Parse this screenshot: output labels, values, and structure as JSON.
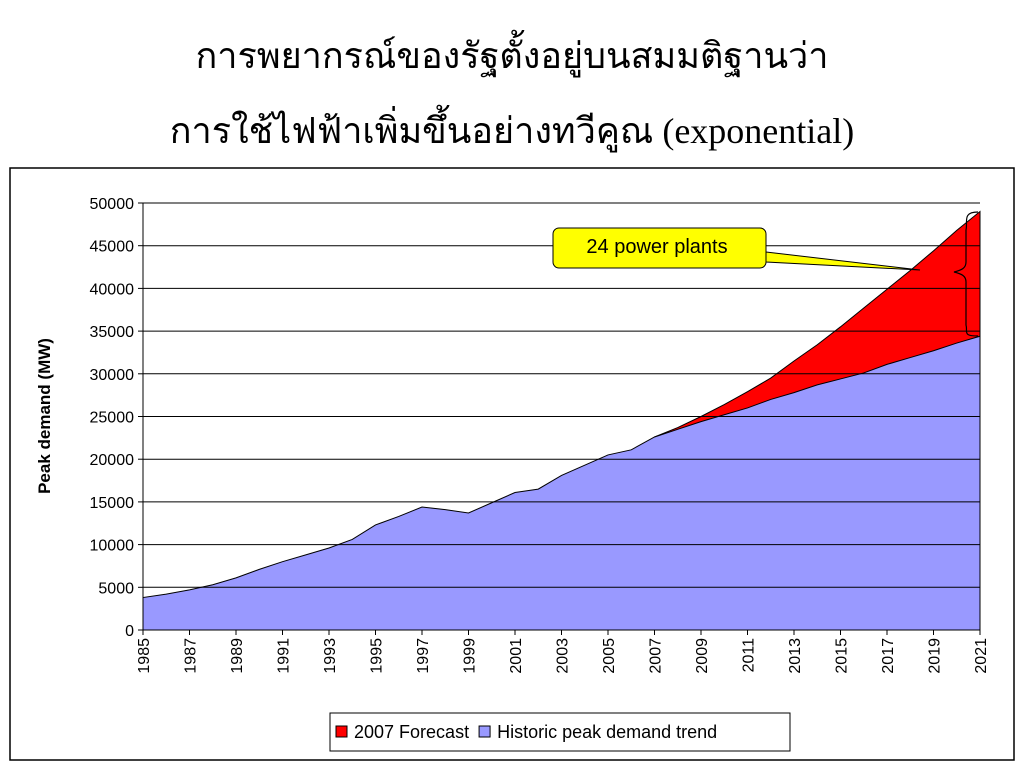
{
  "chart_data": {
    "type": "area",
    "title": [
      "การพยากรณ์ของรัฐตั้งอยู่บนสมมติฐานว่า",
      "การใช้ไฟฟ้าเพิ่มขึ้นอย่างทวีคูณ  (exponential)"
    ],
    "y_label": "Peak demand (MW)",
    "annotation": "24 power plants",
    "x": [
      1985,
      1986,
      1987,
      1988,
      1989,
      1990,
      1991,
      1992,
      1993,
      1994,
      1995,
      1996,
      1997,
      1998,
      1999,
      2000,
      2001,
      2002,
      2003,
      2004,
      2005,
      2006,
      2007,
      2008,
      2009,
      2010,
      2011,
      2012,
      2013,
      2014,
      2015,
      2016,
      2017,
      2018,
      2019,
      2020,
      2021
    ],
    "xlim": [
      1985,
      2021
    ],
    "xticks": [
      1985,
      1987,
      1989,
      1991,
      1993,
      1995,
      1997,
      1999,
      2001,
      2003,
      2005,
      2007,
      2009,
      2011,
      2013,
      2015,
      2017,
      2019,
      2021
    ],
    "ylim": [
      0,
      50000
    ],
    "yticks": [
      0,
      5000,
      10000,
      15000,
      20000,
      25000,
      30000,
      35000,
      40000,
      45000,
      50000
    ],
    "grid": true,
    "legend": "bottom",
    "series": [
      {
        "name": "2007 Forecast",
        "color": "#ff0000",
        "values": [
          null,
          null,
          null,
          null,
          null,
          null,
          null,
          null,
          null,
          null,
          null,
          null,
          null,
          null,
          null,
          null,
          null,
          null,
          null,
          null,
          null,
          null,
          22600,
          23700,
          25000,
          26400,
          27900,
          29500,
          31500,
          33400,
          35500,
          37700,
          39900,
          42100,
          44400,
          46800,
          49000
        ]
      },
      {
        "name": "Historic peak demand trend",
        "color": "#9999ff",
        "values": [
          3800,
          4200,
          4700,
          5300,
          6100,
          7100,
          8000,
          8800,
          9600,
          10600,
          12300,
          13300,
          14400,
          14100,
          13700,
          14900,
          16100,
          16500,
          18100,
          19300,
          20500,
          21100,
          22600,
          23500,
          24400,
          25200,
          26000,
          27000,
          27800,
          28700,
          29400,
          30100,
          31100,
          31900,
          32700,
          33600,
          34400
        ]
      }
    ]
  }
}
